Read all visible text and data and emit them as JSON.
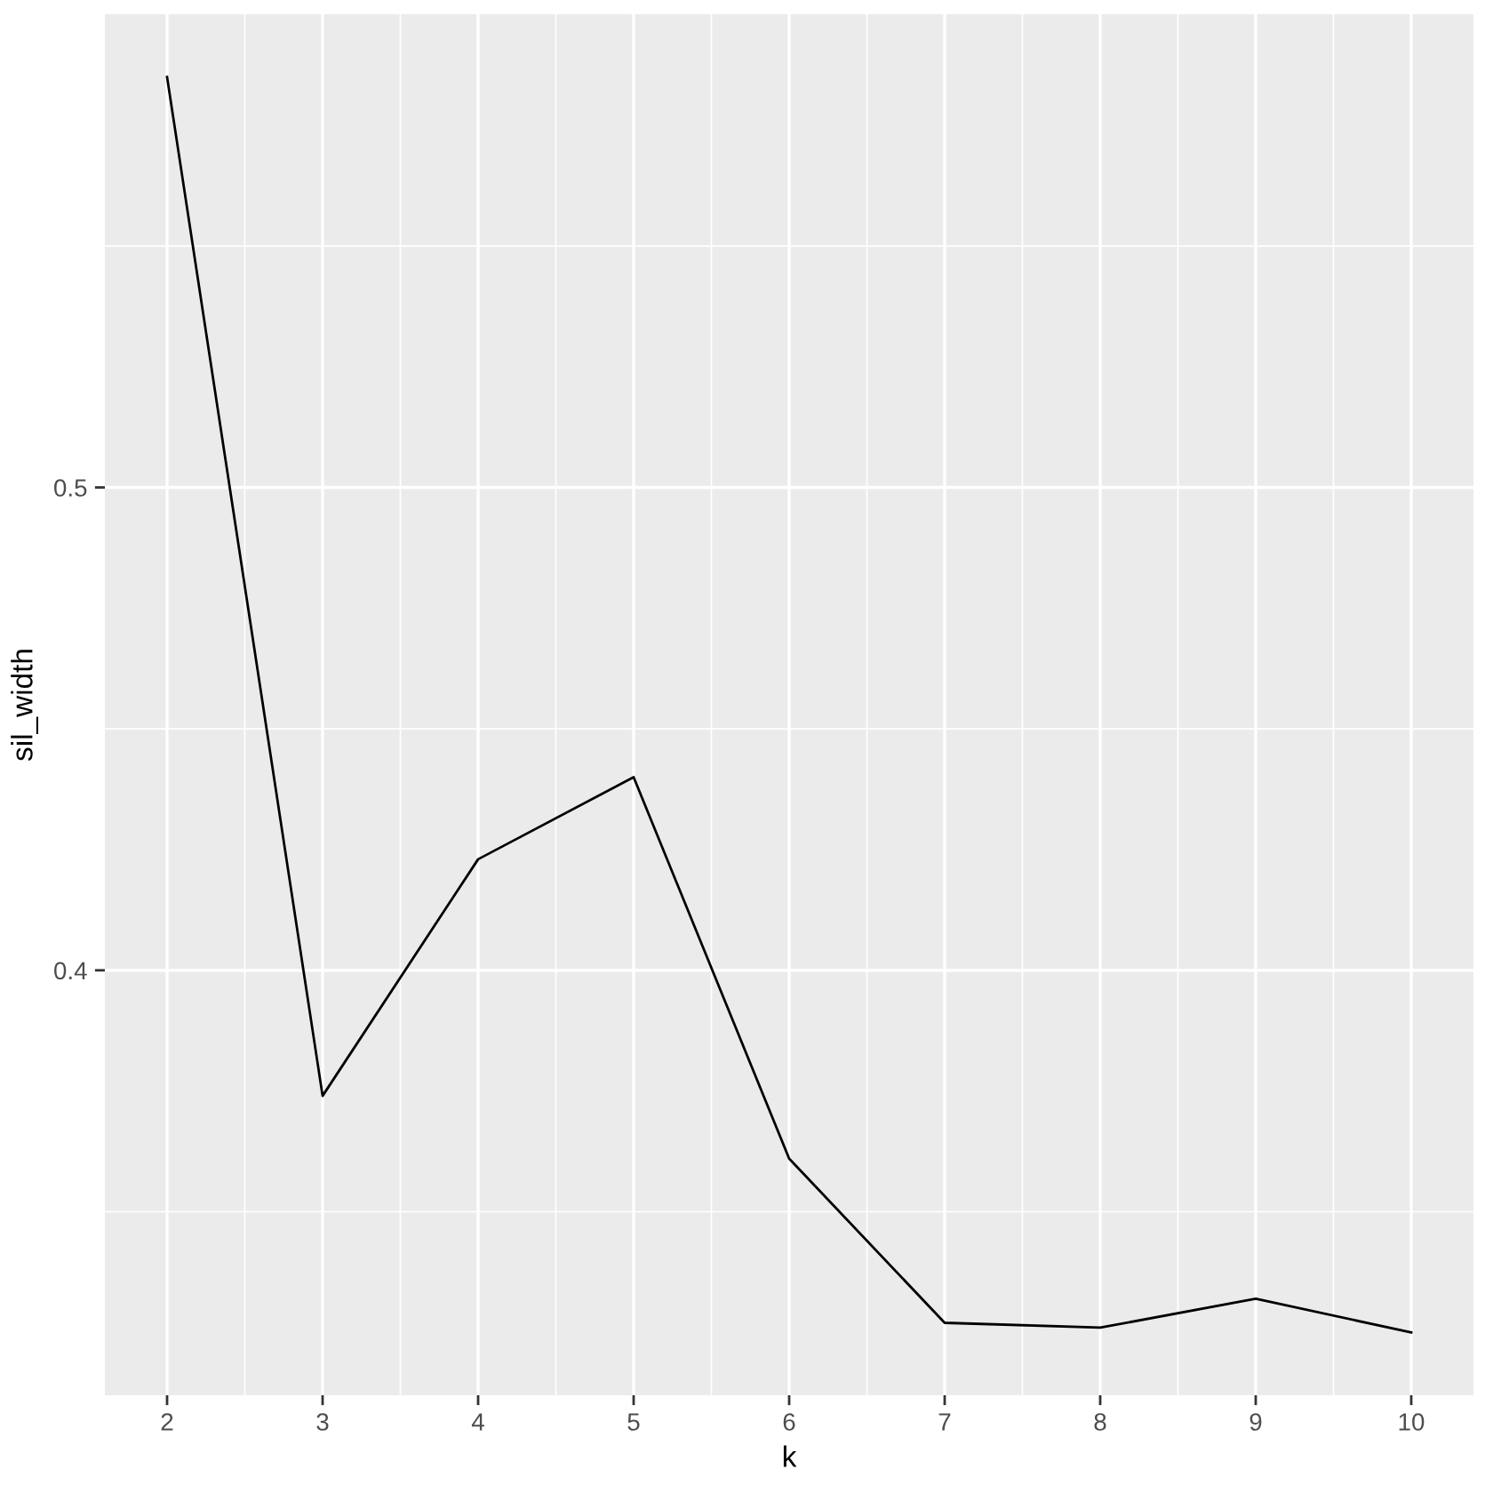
{
  "chart_data": {
    "type": "line",
    "xlabel": "k",
    "ylabel": "sil_width",
    "x": [
      2,
      3,
      4,
      5,
      6,
      7,
      8,
      9,
      10
    ],
    "series": [
      {
        "color": "#000000",
        "values": [
          0.585,
          0.374,
          0.423,
          0.44,
          0.361,
          0.327,
          0.326,
          0.332,
          0.325
        ]
      }
    ],
    "xlim": [
      1.6,
      10.4
    ],
    "xticks": [
      2,
      3,
      4,
      5,
      6,
      7,
      8,
      9,
      10
    ],
    "ylim": [
      0.312,
      0.598
    ],
    "yticks": [
      0.4,
      0.5
    ],
    "grid": true,
    "marker": "none",
    "line_style": "solid"
  }
}
